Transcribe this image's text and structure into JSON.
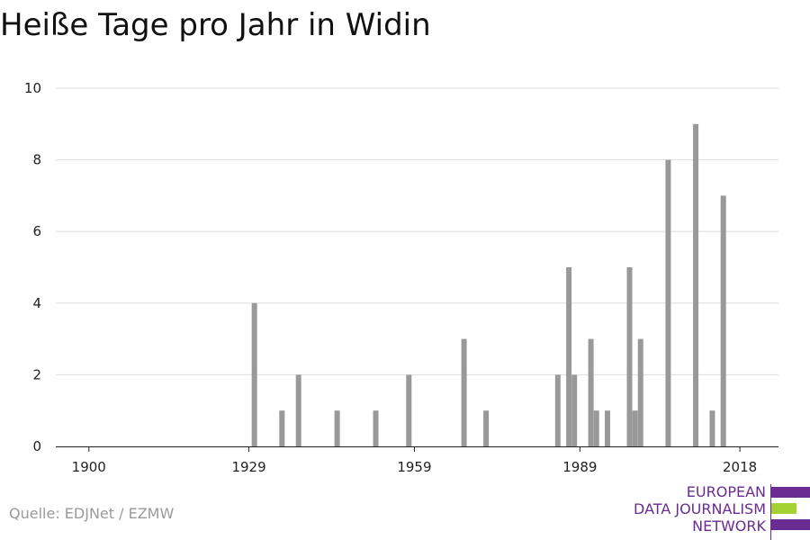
{
  "title": "Heiße Tage pro Jahr in Widin",
  "source": "Quelle: EDJNet / EZMW",
  "logo": {
    "lines": [
      "EUROPEAN",
      "DATA JOURNALISM",
      "NETWORK"
    ],
    "colors": {
      "purple": "#6a2c91",
      "green": "#a4d233"
    }
  },
  "chart_data": {
    "type": "bar",
    "title": "Heiße Tage pro Jahr in Widin",
    "xlabel": "",
    "ylabel": "",
    "xlim": [
      1894,
      2025
    ],
    "ylim": [
      0,
      10
    ],
    "xticks": [
      1900,
      1929,
      1959,
      1989,
      2018
    ],
    "yticks": [
      0,
      2,
      4,
      6,
      8,
      10
    ],
    "grid": true,
    "bar_color": "#999999",
    "x": [
      1930,
      1935,
      1938,
      1945,
      1952,
      1958,
      1968,
      1972,
      1985,
      1987,
      1988,
      1991,
      1992,
      1994,
      1998,
      1999,
      2000,
      2005,
      2010,
      2013,
      2015
    ],
    "values": [
      4,
      1,
      2,
      1,
      1,
      2,
      3,
      1,
      2,
      5,
      2,
      3,
      1,
      1,
      5,
      1,
      3,
      8,
      9,
      1,
      7
    ]
  }
}
